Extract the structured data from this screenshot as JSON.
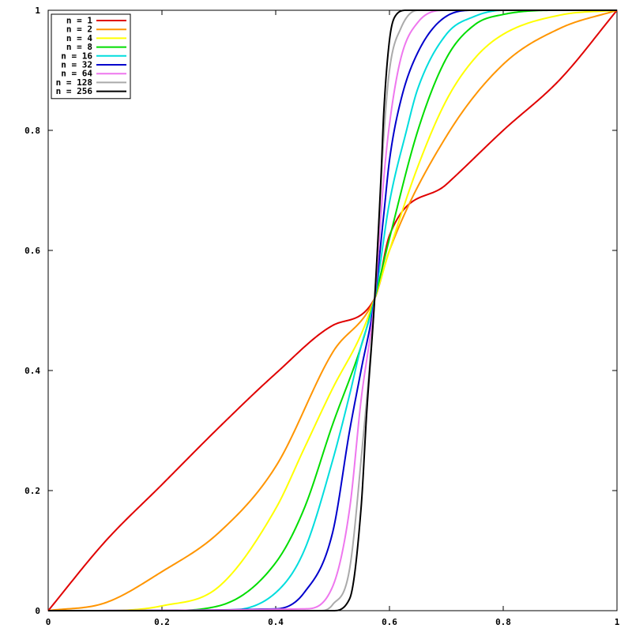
{
  "chart_data": {
    "type": "line",
    "title": "",
    "xlabel": "",
    "ylabel": "",
    "xlim": [
      0,
      1
    ],
    "ylim": [
      0,
      1
    ],
    "grid": false,
    "legend_position": "top-left",
    "x_ticks": [
      "0",
      "0.2",
      "0.4",
      "0.6",
      "0.8",
      "1"
    ],
    "y_ticks": [
      "0",
      "0.2",
      "0.4",
      "0.6",
      "0.8",
      "1"
    ],
    "crossing_point": [
      0.574,
      0.52
    ],
    "series": [
      {
        "name": "n = 1",
        "color": "#e00000",
        "x": [
          0.0,
          0.1,
          0.2,
          0.3,
          0.4,
          0.5,
          0.574,
          0.6,
          0.7,
          0.8,
          0.9,
          1.0
        ],
        "y": [
          0.0,
          0.115,
          0.21,
          0.305,
          0.395,
          0.475,
          0.52,
          0.625,
          0.71,
          0.8,
          0.885,
          1.0
        ]
      },
      {
        "name": "n = 2",
        "color": "#ff9500",
        "x": [
          0.0,
          0.1,
          0.2,
          0.3,
          0.4,
          0.5,
          0.574,
          0.6,
          0.7,
          0.8,
          0.9,
          1.0
        ],
        "y": [
          0.0,
          0.013,
          0.065,
          0.13,
          0.24,
          0.43,
          0.52,
          0.6,
          0.79,
          0.91,
          0.97,
          1.0
        ]
      },
      {
        "name": "n = 4",
        "color": "#ffff00",
        "x": [
          0.0,
          0.1,
          0.2,
          0.3,
          0.4,
          0.45,
          0.5,
          0.55,
          0.574,
          0.6,
          0.65,
          0.7,
          0.75,
          0.8,
          0.9,
          1.0
        ],
        "y": [
          0.0,
          0.0,
          0.008,
          0.04,
          0.17,
          0.27,
          0.37,
          0.46,
          0.52,
          0.6,
          0.74,
          0.85,
          0.92,
          0.96,
          0.992,
          1.0
        ]
      },
      {
        "name": "n = 8",
        "color": "#00dd00",
        "x": [
          0.0,
          0.2,
          0.3,
          0.4,
          0.45,
          0.5,
          0.55,
          0.574,
          0.6,
          0.65,
          0.7,
          0.75,
          0.8,
          0.9,
          1.0
        ],
        "y": [
          0.0,
          0.0,
          0.008,
          0.08,
          0.17,
          0.31,
          0.44,
          0.52,
          0.62,
          0.8,
          0.92,
          0.976,
          0.993,
          1.0,
          1.0
        ]
      },
      {
        "name": "n = 16",
        "color": "#00dddd",
        "x": [
          0.0,
          0.3,
          0.4,
          0.45,
          0.5,
          0.53,
          0.55,
          0.574,
          0.6,
          0.63,
          0.65,
          0.7,
          0.75,
          0.8,
          1.0
        ],
        "y": [
          0.0,
          0.0,
          0.03,
          0.1,
          0.25,
          0.36,
          0.44,
          0.52,
          0.68,
          0.8,
          0.87,
          0.96,
          0.99,
          1.0,
          1.0
        ]
      },
      {
        "name": "n = 32",
        "color": "#0000cc",
        "x": [
          0.0,
          0.4,
          0.45,
          0.5,
          0.53,
          0.55,
          0.574,
          0.59,
          0.6,
          0.62,
          0.65,
          0.7,
          0.75,
          1.0
        ],
        "y": [
          0.0,
          0.003,
          0.03,
          0.13,
          0.3,
          0.4,
          0.52,
          0.66,
          0.75,
          0.85,
          0.93,
          0.99,
          1.0,
          1.0
        ]
      },
      {
        "name": "n = 64",
        "color": "#ee77ee",
        "x": [
          0.0,
          0.45,
          0.5,
          0.53,
          0.55,
          0.574,
          0.59,
          0.6,
          0.62,
          0.65,
          0.7,
          1.0
        ],
        "y": [
          0.0,
          0.003,
          0.04,
          0.17,
          0.35,
          0.52,
          0.72,
          0.81,
          0.92,
          0.98,
          1.0,
          1.0
        ]
      },
      {
        "name": "n = 128",
        "color": "#aaaaaa",
        "x": [
          0.0,
          0.48,
          0.5,
          0.53,
          0.55,
          0.574,
          0.59,
          0.6,
          0.62,
          0.65,
          1.0
        ],
        "y": [
          0.0,
          0.0,
          0.01,
          0.07,
          0.25,
          0.52,
          0.79,
          0.9,
          0.97,
          1.0,
          1.0
        ]
      },
      {
        "name": "n = 256",
        "color": "#000000",
        "x": [
          0.0,
          0.5,
          0.53,
          0.55,
          0.56,
          0.574,
          0.585,
          0.59,
          0.6,
          0.61,
          0.63,
          1.0
        ],
        "y": [
          0.0,
          0.0,
          0.02,
          0.17,
          0.33,
          0.52,
          0.72,
          0.83,
          0.95,
          0.99,
          1.0,
          1.0
        ]
      }
    ]
  }
}
